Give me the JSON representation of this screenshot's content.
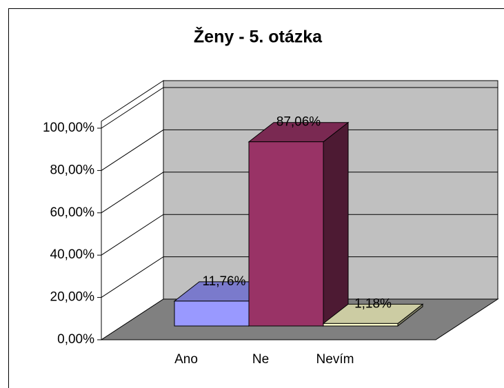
{
  "chart_data": {
    "type": "bar3d",
    "title": "Ženy - 5. otázka",
    "categories": [
      "Ano",
      "Ne",
      "Nevím"
    ],
    "values": [
      11.76,
      87.06,
      1.18
    ],
    "value_labels": [
      "11,76%",
      "87,06%",
      "1,18%"
    ],
    "colors": [
      "#9999ff",
      "#993366",
      "#ffffcc"
    ],
    "ylim": [
      0,
      100
    ],
    "yticks": [
      {
        "value": 0,
        "label": "0,00%"
      },
      {
        "value": 20,
        "label": "20,00%"
      },
      {
        "value": 40,
        "label": "40,00%"
      },
      {
        "value": 60,
        "label": "60,00%"
      },
      {
        "value": 80,
        "label": "80,00%"
      },
      {
        "value": 100,
        "label": "100,00%"
      }
    ],
    "grid": true
  }
}
